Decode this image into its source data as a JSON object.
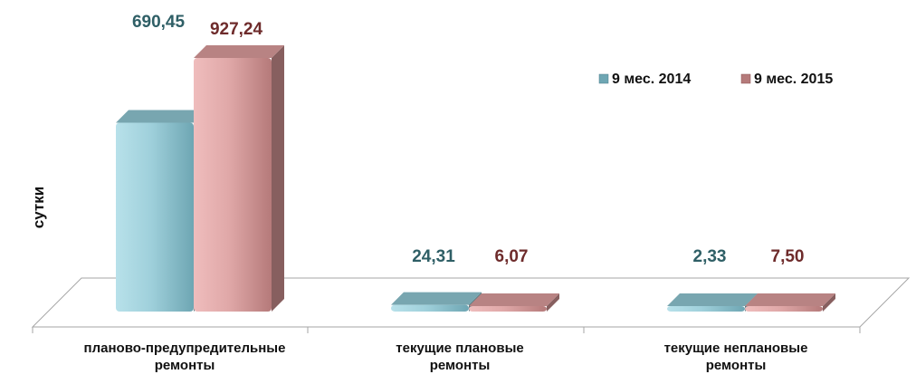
{
  "chart_data": {
    "type": "bar",
    "title": "",
    "xlabel": "",
    "ylabel": "сутки",
    "categories": [
      [
        "планово-предупредительные",
        "ремонты"
      ],
      [
        "текущие плановые",
        "ремонты"
      ],
      [
        "текущие неплановые",
        "ремонты"
      ]
    ],
    "series": [
      {
        "name": "9 мес. 2014",
        "values": [
          690.45,
          24.31,
          2.33
        ],
        "labels": [
          "690,45",
          "24,31",
          "2,33"
        ],
        "color": "#8dc3cf",
        "label_color": "#2f5f66"
      },
      {
        "name": "9 мес. 2015",
        "values": [
          927.24,
          6.07,
          7.5
        ],
        "labels": [
          "927,24",
          "6,07",
          "7,50"
        ],
        "color": "#d99a9a",
        "label_color": "#6e2b2b"
      }
    ],
    "legend_position": "top-right",
    "grid": false
  }
}
